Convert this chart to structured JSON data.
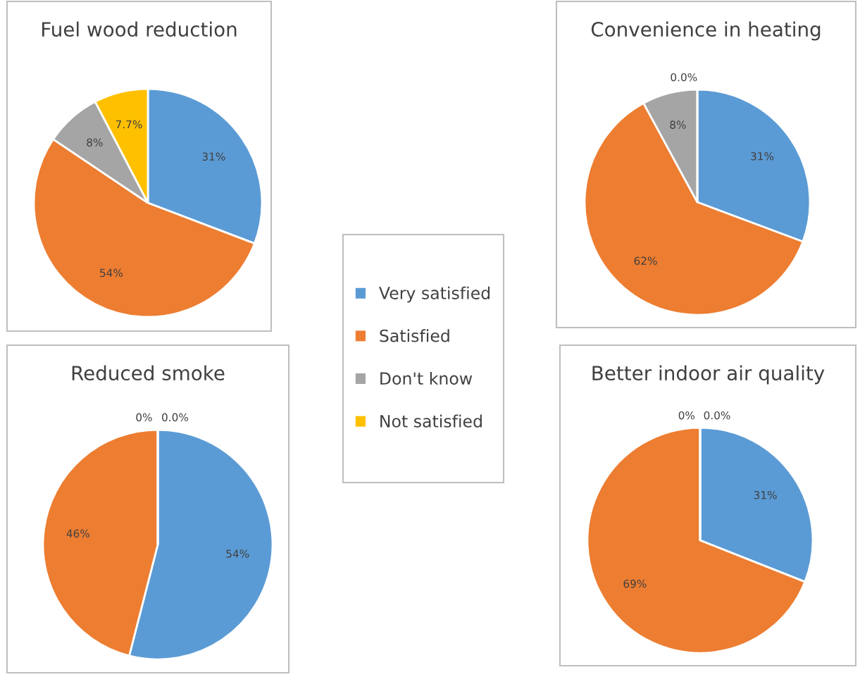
{
  "chart_data": [
    {
      "type": "pie",
      "title": "Fuel wood reduction",
      "categories": [
        "Very satisfied",
        "Satisfied",
        "Don't know",
        "Not satisfied"
      ],
      "values": [
        31,
        54,
        8,
        7.7
      ],
      "colors": [
        "#5b9bd5",
        "#ed7d31",
        "#a5a5a5",
        "#ffc000"
      ],
      "value_labels": [
        "31%",
        "54%",
        "8%",
        "7.7%"
      ],
      "legend": "right"
    },
    {
      "type": "pie",
      "title": "Convenience in heating",
      "categories": [
        null,
        null,
        null,
        null
      ],
      "values": [
        31,
        62,
        8,
        0.0
      ],
      "colors": [
        "#5b9bd5",
        "#ed7d31",
        "#a5a5a5",
        "#ffc000"
      ],
      "value_labels": [
        "31%",
        "62%",
        "8%",
        "0.0%"
      ]
    },
    {
      "type": "pie",
      "title": "Reduced smoke",
      "categories": [
        null,
        null,
        null,
        null
      ],
      "values": [
        54,
        46,
        0,
        0.0
      ],
      "colors": [
        "#5b9bd5",
        "#ed7d31",
        "#a5a5a5",
        "#ffc000"
      ],
      "value_labels": [
        "54%",
        "46%",
        "0%",
        "0.0%"
      ]
    },
    {
      "type": "pie",
      "title": "Better indoor air quality",
      "categories": [
        null,
        null,
        null,
        null
      ],
      "values": [
        31,
        69,
        0,
        0.0
      ],
      "colors": [
        "#5b9bd5",
        "#ed7d31",
        "#a5a5a5",
        "#ffc000"
      ],
      "value_labels": [
        "31%",
        "69%",
        "0%",
        "0.0%"
      ]
    }
  ]
}
